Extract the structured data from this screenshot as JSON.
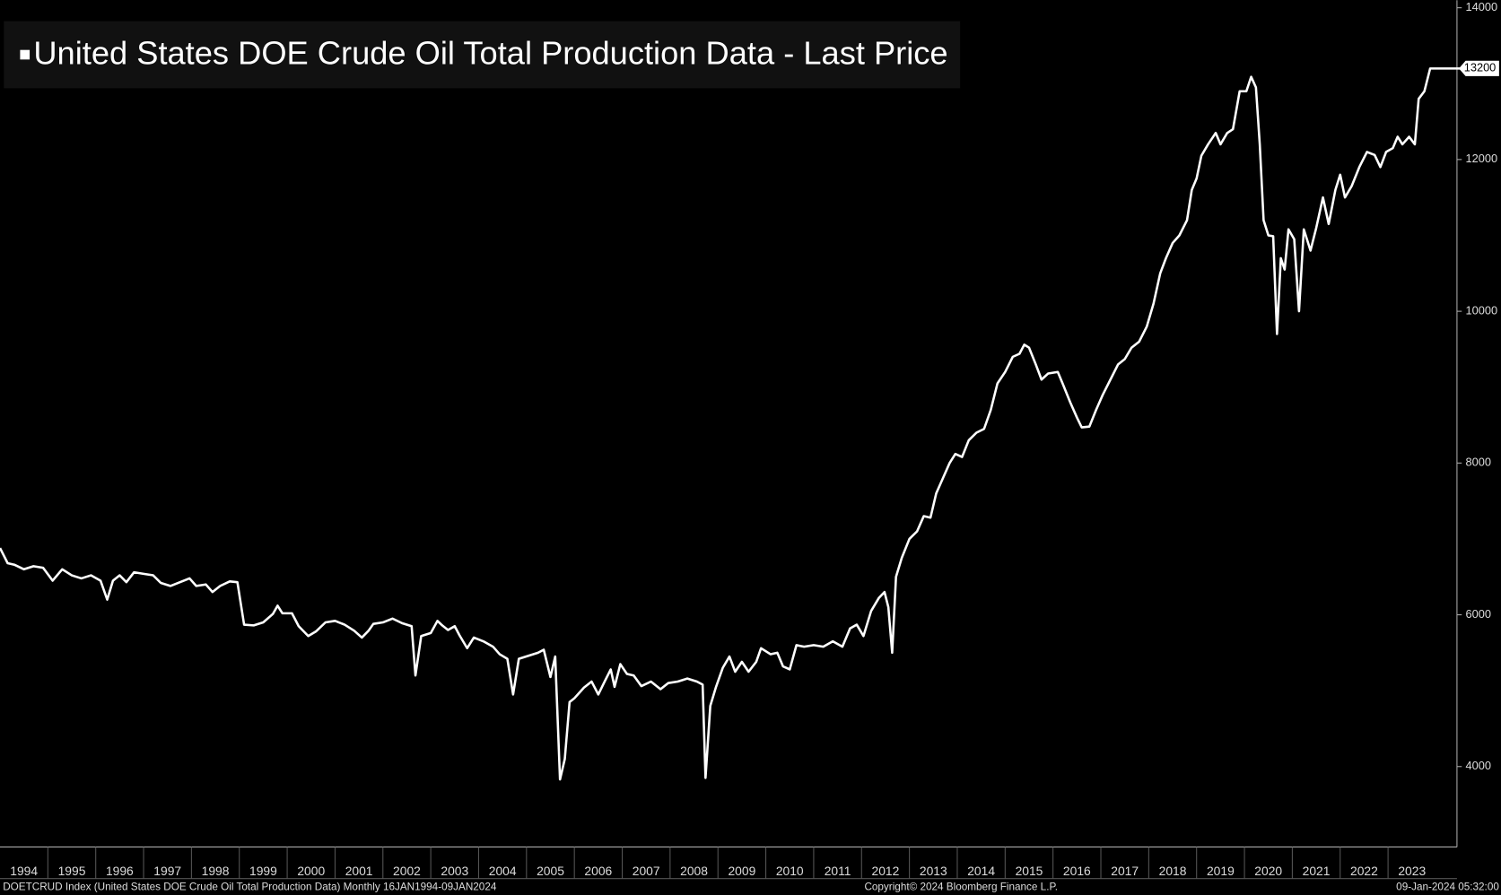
{
  "chart_data": {
    "type": "line",
    "title": "United States DOE Crude Oil Total Production Data - Last Price",
    "footer_left": "DOETCRUD Index (United States DOE Crude Oil Total Production Data)  Monthly 16JAN1994-09JAN2024",
    "footer_center": "Copyright© 2024 Bloomberg Finance L.P.",
    "footer_right": "09-Jan-2024 05:32:00",
    "xlim": [
      1994,
      2024.6
    ],
    "xticks": [
      1994,
      1995,
      1996,
      1997,
      1998,
      1999,
      2000,
      2001,
      2002,
      2003,
      2004,
      2005,
      2006,
      2007,
      2008,
      2009,
      2010,
      2011,
      2012,
      2013,
      2014,
      2015,
      2016,
      2017,
      2018,
      2019,
      2020,
      2021,
      2022,
      2023
    ],
    "ylim": [
      2940,
      14100
    ],
    "yticks": [
      4000,
      6000,
      8000,
      10000,
      12000,
      14000
    ],
    "x": [
      1994,
      1994.16,
      1994.3,
      1994.5,
      1994.7,
      1994.9,
      1995.1,
      1995.3,
      1995.5,
      1995.7,
      1995.9,
      1996.1,
      1996.24,
      1996.36,
      1996.5,
      1996.64,
      1996.8,
      1997,
      1997.2,
      1997.36,
      1997.56,
      1997.76,
      1997.96,
      1998.1,
      1998.3,
      1998.44,
      1998.6,
      1998.8,
      1998.96,
      1999.1,
      1999.3,
      1999.5,
      1999.7,
      1999.8,
      1999.9,
      2000.1,
      2000.24,
      2000.44,
      2000.6,
      2000.8,
      2001,
      2001.2,
      2001.4,
      2001.56,
      2001.7,
      2001.8,
      2002,
      2002.2,
      2002.4,
      2002.6,
      2002.68,
      2002.8,
      2003,
      2003.14,
      2003.24,
      2003.36,
      2003.5,
      2003.6,
      2003.76,
      2003.9,
      2004.1,
      2004.3,
      2004.44,
      2004.6,
      2004.72,
      2004.84,
      2005.04,
      2005.24,
      2005.36,
      2005.5,
      2005.6,
      2005.7,
      2005.8,
      2005.9,
      2006,
      2006.2,
      2006.36,
      2006.5,
      2006.64,
      2006.76,
      2006.84,
      2006.96,
      2007.1,
      2007.24,
      2007.4,
      2007.6,
      2007.8,
      2007.96,
      2008.16,
      2008.36,
      2008.56,
      2008.68,
      2008.74,
      2008.84,
      2008.96,
      2009.1,
      2009.24,
      2009.36,
      2009.5,
      2009.64,
      2009.8,
      2009.9,
      2010.1,
      2010.24,
      2010.36,
      2010.5,
      2010.64,
      2010.8,
      2011,
      2011.2,
      2011.4,
      2011.6,
      2011.76,
      2011.9,
      2012.04,
      2012.2,
      2012.36,
      2012.48,
      2012.56,
      2012.64,
      2012.72,
      2012.84,
      2013,
      2013.16,
      2013.3,
      2013.44,
      2013.56,
      2013.7,
      2013.84,
      2013.96,
      2014.1,
      2014.24,
      2014.4,
      2014.56,
      2014.7,
      2014.84,
      2015,
      2015.16,
      2015.3,
      2015.4,
      2015.5,
      2015.64,
      2015.76,
      2015.9,
      2016.1,
      2016.2,
      2016.36,
      2016.5,
      2016.6,
      2016.76,
      2016.9,
      2017.04,
      2017.2,
      2017.36,
      2017.5,
      2017.64,
      2017.8,
      2017.96,
      2018.1,
      2018.24,
      2018.36,
      2018.5,
      2018.64,
      2018.8,
      2018.9,
      2019,
      2019.1,
      2019.24,
      2019.4,
      2019.5,
      2019.64,
      2019.76,
      2019.9,
      2020.04,
      2020.14,
      2020.24,
      2020.32,
      2020.4,
      2020.5,
      2020.6,
      2020.68,
      2020.76,
      2020.84,
      2020.92,
      2021.04,
      2021.14,
      2021.24,
      2021.38,
      2021.5,
      2021.64,
      2021.76,
      2021.9,
      2022,
      2022.1,
      2022.24,
      2022.4,
      2022.56,
      2022.72,
      2022.84,
      2022.96,
      2023.1,
      2023.2,
      2023.3,
      2023.44,
      2023.56,
      2023.64,
      2023.76,
      2023.88,
      2024.54
    ],
    "series": [
      {
        "name": "United States DOE Crude Oil Total Production Data - Last Price",
        "color": "#ffffff",
        "values": [
          6880,
          6680,
          6660,
          6600,
          6640,
          6620,
          6450,
          6600,
          6520,
          6480,
          6520,
          6450,
          6200,
          6450,
          6520,
          6430,
          6560,
          6540,
          6520,
          6420,
          6380,
          6430,
          6480,
          6380,
          6400,
          6300,
          6380,
          6440,
          6430,
          5870,
          5860,
          5900,
          6010,
          6120,
          6020,
          6020,
          5850,
          5720,
          5780,
          5900,
          5920,
          5870,
          5790,
          5700,
          5790,
          5880,
          5900,
          5950,
          5890,
          5850,
          5200,
          5720,
          5760,
          5920,
          5860,
          5800,
          5850,
          5730,
          5560,
          5700,
          5650,
          5580,
          5480,
          5420,
          4950,
          5420,
          5460,
          5500,
          5540,
          5180,
          5450,
          3830,
          4100,
          4850,
          4900,
          5040,
          5120,
          4950,
          5130,
          5280,
          5050,
          5350,
          5220,
          5200,
          5060,
          5120,
          5020,
          5100,
          5120,
          5160,
          5120,
          5080,
          3850,
          4800,
          5050,
          5300,
          5450,
          5250,
          5380,
          5250,
          5380,
          5560,
          5480,
          5500,
          5320,
          5280,
          5600,
          5580,
          5600,
          5580,
          5650,
          5580,
          5820,
          5870,
          5720,
          6050,
          6220,
          6300,
          6100,
          5500,
          6500,
          6750,
          7000,
          7100,
          7300,
          7280,
          7600,
          7800,
          8000,
          8120,
          8080,
          8300,
          8400,
          8450,
          8700,
          9050,
          9200,
          9400,
          9440,
          9560,
          9520,
          9300,
          9100,
          9180,
          9200,
          9050,
          8800,
          8600,
          8470,
          8480,
          8700,
          8900,
          9100,
          9300,
          9370,
          9520,
          9600,
          9800,
          10100,
          10500,
          10700,
          10900,
          11000,
          11200,
          11600,
          11750,
          12050,
          12200,
          12350,
          12200,
          12350,
          12400,
          12900,
          12900,
          13090,
          12950,
          12200,
          11200,
          11000,
          10990,
          9700,
          10700,
          10550,
          11080,
          10950,
          10000,
          11080,
          10800,
          11100,
          11500,
          11150,
          11600,
          11800,
          11500,
          11650,
          11900,
          12100,
          12060,
          11900,
          12100,
          12150,
          12300,
          12200,
          12300,
          12200,
          12800,
          12900,
          13200,
          13200
        ]
      }
    ]
  }
}
